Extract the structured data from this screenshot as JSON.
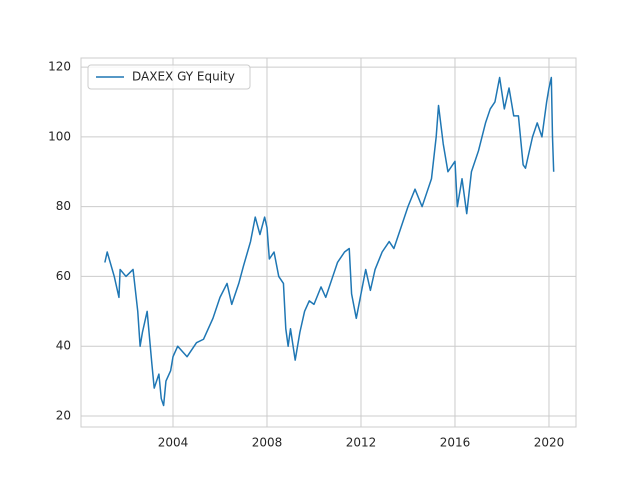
{
  "chart_data": {
    "type": "line",
    "x": [
      2001.1,
      2001.2,
      2001.5,
      2001.7,
      2001.75,
      2002.0,
      2002.3,
      2002.5,
      2002.6,
      2002.7,
      2002.9,
      2003.1,
      2003.2,
      2003.4,
      2003.5,
      2003.6,
      2003.7,
      2003.9,
      2004.0,
      2004.2,
      2004.6,
      2005.0,
      2005.3,
      2005.7,
      2006.0,
      2006.3,
      2006.5,
      2006.8,
      2007.0,
      2007.3,
      2007.5,
      2007.7,
      2007.9,
      2008.0,
      2008.1,
      2008.3,
      2008.5,
      2008.7,
      2008.8,
      2008.9,
      2009.0,
      2009.2,
      2009.4,
      2009.6,
      2009.8,
      2010.0,
      2010.3,
      2010.5,
      2010.8,
      2011.0,
      2011.3,
      2011.5,
      2011.6,
      2011.8,
      2012.0,
      2012.2,
      2012.4,
      2012.6,
      2012.9,
      2013.2,
      2013.4,
      2013.7,
      2014.0,
      2014.3,
      2014.6,
      2014.8,
      2015.0,
      2015.2,
      2015.3,
      2015.5,
      2015.7,
      2016.0,
      2016.1,
      2016.3,
      2016.5,
      2016.7,
      2017.0,
      2017.3,
      2017.5,
      2017.7,
      2017.9,
      2018.1,
      2018.3,
      2018.5,
      2018.7,
      2018.9,
      2019.0,
      2019.3,
      2019.5,
      2019.7,
      2019.9,
      2020.0,
      2020.1,
      2020.15,
      2020.2
    ],
    "series": [
      {
        "name": "DAXEX GY Equity",
        "color": "#1f77b4",
        "values": [
          64,
          67,
          60,
          54,
          62,
          60,
          62,
          50,
          40,
          44,
          50,
          35,
          28,
          32,
          25,
          23,
          30,
          33,
          37,
          40,
          37,
          41,
          42,
          48,
          54,
          58,
          52,
          58,
          63,
          70,
          77,
          72,
          77,
          74,
          65,
          67,
          60,
          58,
          45,
          40,
          45,
          36,
          44,
          50,
          53,
          52,
          57,
          54,
          60,
          64,
          67,
          68,
          55,
          48,
          55,
          62,
          56,
          62,
          67,
          70,
          68,
          74,
          80,
          85,
          80,
          84,
          88,
          100,
          109,
          98,
          90,
          93,
          80,
          88,
          78,
          90,
          96,
          104,
          108,
          110,
          117,
          108,
          114,
          106,
          106,
          92,
          91,
          100,
          104,
          100,
          110,
          114,
          117,
          100,
          90
        ]
      }
    ],
    "xlim": [
      2000.085,
      2021.15
    ],
    "xticks": [
      2004,
      2008,
      2012,
      2016,
      2020
    ],
    "ylim": [
      16.85,
      122.6
    ],
    "yticks": [
      20,
      40,
      60,
      80,
      100,
      120
    ],
    "grid": true,
    "legend": "upper left"
  }
}
